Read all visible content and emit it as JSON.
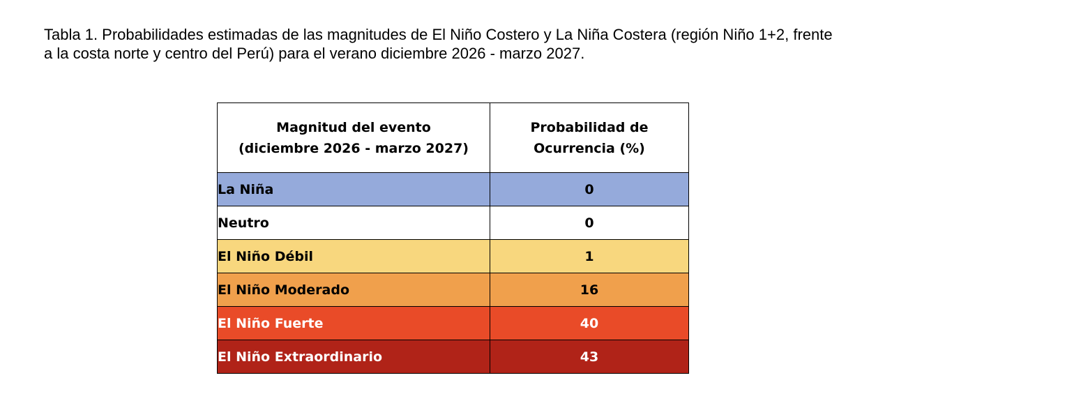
{
  "caption": {
    "line1": "Tabla 1. Probabilidades estimadas de las magnitudes de El Niño Costero y La Niña Costera (región Niño 1+2, frente",
    "line2": "a la costa norte y centro del Perú) para el verano diciembre 2026 - marzo 2027."
  },
  "table": {
    "header": {
      "magnitude_line1": "Magnitud del evento",
      "magnitude_line2": "(diciembre 2026 - marzo 2027)",
      "probability_line1": "Probabilidad de",
      "probability_line2": "Ocurrencia (%)"
    },
    "rows": [
      {
        "label": "La Niña",
        "value": "0",
        "bg": "#95aadb",
        "color": "#000000"
      },
      {
        "label": "Neutro",
        "value": "0",
        "bg": "#ffffff",
        "color": "#000000"
      },
      {
        "label": "El Niño Débil",
        "value": "1",
        "bg": "#f8d77e",
        "color": "#000000"
      },
      {
        "label": "El Niño Moderado",
        "value": "16",
        "bg": "#f0a04c",
        "color": "#000000"
      },
      {
        "label": "El Niño Fuerte",
        "value": "40",
        "bg": "#e94b28",
        "color": "#ffffff"
      },
      {
        "label": "El Niño Extraordinario",
        "value": "43",
        "bg": "#b02318",
        "color": "#ffffff"
      }
    ]
  }
}
